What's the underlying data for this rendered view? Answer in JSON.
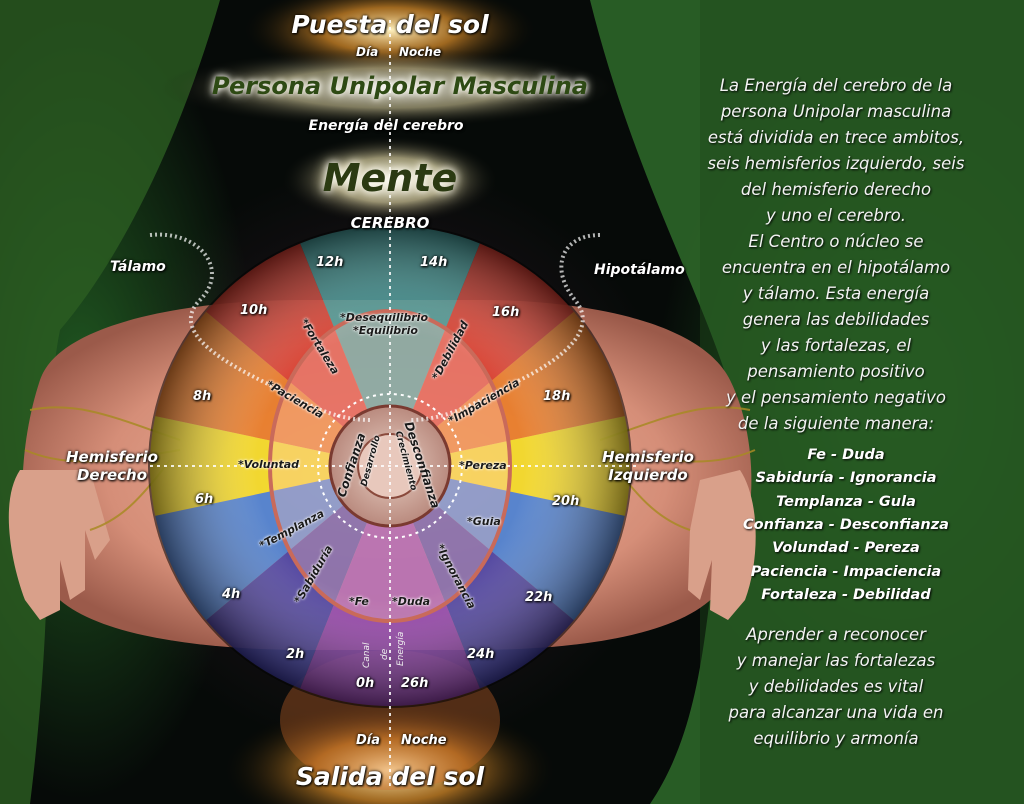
{
  "header": {
    "sunset": "Puesta del sol",
    "day": "Día",
    "night": "Noche",
    "title": "Persona Unipolar Masculina",
    "energy_label": "Energía del cerebro",
    "mind": "Mente",
    "brain": "CEREBRO"
  },
  "footer": {
    "day": "Día",
    "night": "Noche",
    "sunrise": "Salida del sol"
  },
  "regions": {
    "thalamus": "Tálamo",
    "hypothalamus": "Hipotálamo",
    "right_hemisphere_line1": "Hemisferio",
    "right_hemisphere_line2": "Derecho",
    "left_hemisphere_line1": "Hemisferio",
    "left_hemisphere_line2": "Izquierdo"
  },
  "hours": {
    "h12": "12h",
    "h14": "14h",
    "h10": "10h",
    "h16": "16h",
    "h8": "8h",
    "h18": "18h",
    "h6": "6h",
    "h20": "20h",
    "h4": "4h",
    "h22": "22h",
    "h2": "2h",
    "h24": "24h",
    "h0": "0h",
    "h26": "26h"
  },
  "wheel": {
    "desequilibrio": "*Desequilibrio",
    "equilibrio": "*Equilibrio",
    "fortaleza": "*Fortaleza",
    "debilidad": "*Debilidad",
    "paciencia": "*Paciencia",
    "impaciencia": "*Impaciencia",
    "voluntad": "*Voluntad",
    "pereza": "*Pereza",
    "templanza": "*Templanza",
    "guia": "*Guia",
    "sabiduria": "*Sabiduría",
    "ignorancia": "*Ignorancia",
    "fe": "*Fe",
    "duda": "*Duda",
    "confianza": "Confianza",
    "desconfianza": "Desconfianza",
    "desarrollo": "Desarrollo",
    "crecimiento": "Crecimiento",
    "canal": "Canal",
    "de": "de",
    "energia": "Energía"
  },
  "description": {
    "lines": [
      "La Energía del cerebro de la",
      "persona Unipolar masculina",
      "está dividida en trece ambitos,",
      "seis hemisferios izquierdo, seis",
      "del hemisferio derecho",
      "y uno el cerebro.",
      "El Centro o núcleo se",
      "encuentra en el hipotálamo",
      "y tálamo. Esta energía",
      "genera las debilidades",
      "y las  fortalezas, el",
      "pensamiento positivo",
      "y el pensamiento negativo",
      "de la siguiente manera:"
    ],
    "pairs": [
      "Fe - Duda",
      "Sabiduría - Ignorancia",
      "Templanza - Gula",
      "Confianza - Desconfianza",
      "Volundad - Pereza",
      "Paciencia - Impaciencia",
      "Fortaleza - Debilidad"
    ],
    "closing": [
      "Aprender a reconocer",
      "y manejar las fortalezas",
      "y debilidades es vital",
      "para alcanzar una vida en",
      "equilibrio y armonía"
    ]
  },
  "colors": {
    "teal": "#3f9a98",
    "red": "#d8382a",
    "orange": "#e97a22",
    "yellow": "#f4e020",
    "blue": "#3f7fd8",
    "indigo": "#3c3aa6",
    "violet": "#8a3ab0",
    "green": "#2f6b2a"
  }
}
